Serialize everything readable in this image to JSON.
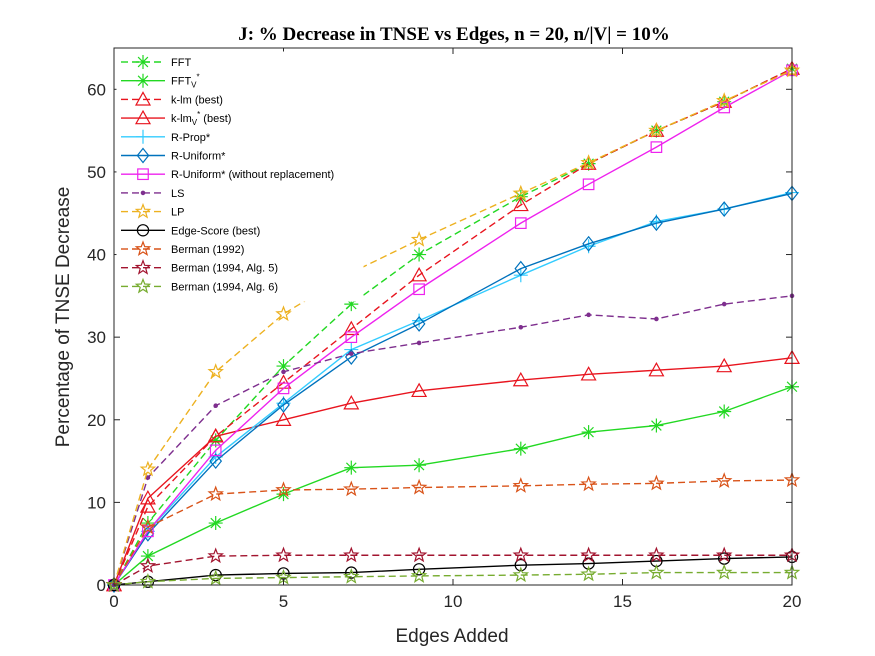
{
  "chart_data": {
    "type": "line",
    "title": "J: % Decrease in TNSE vs Edges, n = 20, n/|V| = 10%",
    "xlabel": "Edges Added",
    "ylabel": "Percentage of TNSE Decrease",
    "xlim": [
      0,
      20
    ],
    "ylim": [
      0,
      65
    ],
    "xticks": [
      0,
      5,
      10,
      15,
      20
    ],
    "yticks": [
      0,
      10,
      20,
      30,
      40,
      50,
      60
    ],
    "grid": false,
    "legend_position": "top-left",
    "x": [
      0,
      1,
      3,
      5,
      7,
      9,
      12,
      14,
      16,
      18,
      20
    ],
    "series": [
      {
        "name": "FFT",
        "legend": {
          "base": "FFT",
          "sub": "",
          "sup": "",
          "rest": ""
        },
        "color": "#22d822",
        "dash": "dashed",
        "marker": "asterisk",
        "values": [
          0,
          7.5,
          17.5,
          26.5,
          34,
          40,
          47,
          51,
          55,
          58.5,
          62.5
        ]
      },
      {
        "name": "FFT_V*",
        "legend": {
          "base": "FFT",
          "sub": "V",
          "sup": "*",
          "rest": ""
        },
        "color": "#22d822",
        "dash": "solid",
        "marker": "asterisk",
        "values": [
          0,
          3.5,
          7.5,
          11,
          14.2,
          14.5,
          16.5,
          18.5,
          19.3,
          21,
          24
        ]
      },
      {
        "name": "k-lm (best)",
        "legend": {
          "base": "k-lm (best)",
          "sub": "",
          "sup": "",
          "rest": ""
        },
        "color": "#e8141e",
        "dash": "dashed",
        "marker": "triangle",
        "values": [
          0,
          9.5,
          18,
          24.5,
          31,
          37.5,
          46,
          51,
          55,
          58.5,
          62.5
        ]
      },
      {
        "name": "k-lm_V* (best)",
        "legend": {
          "base": "k-lm",
          "sub": "V",
          "sup": "*",
          "rest": " (best)"
        },
        "color": "#e8141e",
        "dash": "solid",
        "marker": "triangle",
        "values": [
          0,
          10.5,
          18,
          20,
          22,
          23.5,
          24.8,
          25.5,
          26,
          26.5,
          27.5
        ]
      },
      {
        "name": "R-Prop*",
        "legend": {
          "base": "R-Prop*",
          "sub": "",
          "sup": "",
          "rest": ""
        },
        "color": "#33ccff",
        "dash": "solid",
        "marker": "plus",
        "values": [
          0,
          6.5,
          15.5,
          22,
          28.5,
          32,
          37.5,
          41,
          44,
          45.5,
          47.5
        ]
      },
      {
        "name": "R-Uniform*",
        "legend": {
          "base": "R-Uniform*",
          "sub": "",
          "sup": "",
          "rest": ""
        },
        "color": "#0072bd",
        "dash": "solid",
        "marker": "diamond",
        "values": [
          0,
          6.2,
          15,
          21.8,
          27.6,
          31.6,
          38.3,
          41.3,
          43.8,
          45.5,
          47.4
        ]
      },
      {
        "name": "R-Uniform* (without replacement)",
        "legend": {
          "base": "R-Uniform* (without replacement)",
          "sub": "",
          "sup": "",
          "rest": ""
        },
        "color": "#ee22ee",
        "dash": "solid",
        "marker": "square",
        "values": [
          0,
          6.5,
          16.3,
          23.8,
          30,
          35.8,
          43.8,
          48.5,
          53,
          57.8,
          62.3
        ]
      },
      {
        "name": "LS",
        "legend": {
          "base": "LS",
          "sub": "",
          "sup": "",
          "rest": ""
        },
        "color": "#7e2f8e",
        "dash": "dashed",
        "marker": "dot",
        "values": [
          0,
          13,
          21.7,
          25.8,
          28,
          29.3,
          31.2,
          32.7,
          32.2,
          34,
          35
        ]
      },
      {
        "name": "LP",
        "legend": {
          "base": "LP",
          "sub": "",
          "sup": "",
          "rest": ""
        },
        "color": "#edb120",
        "dash": "dashed",
        "marker": "pentagram",
        "values": [
          0,
          14,
          25.8,
          32.8,
          37.8,
          41.8,
          47.4,
          51.1,
          55,
          58.6,
          62.3
        ]
      },
      {
        "name": "Edge-Score (best)",
        "legend": {
          "base": "Edge-Score (best)",
          "sub": "",
          "sup": "",
          "rest": ""
        },
        "color": "#000000",
        "dash": "solid",
        "marker": "circle",
        "values": [
          0,
          0.4,
          1.2,
          1.4,
          1.5,
          1.9,
          2.4,
          2.6,
          2.9,
          3.2,
          3.4
        ]
      },
      {
        "name": "Berman (1992)",
        "legend": {
          "base": "Berman (1992)",
          "sub": "",
          "sup": "",
          "rest": ""
        },
        "color": "#d95319",
        "dash": "dashed",
        "marker": "pentagram",
        "values": [
          0,
          7,
          11,
          11.5,
          11.6,
          11.8,
          12,
          12.2,
          12.3,
          12.6,
          12.7
        ]
      },
      {
        "name": "Berman (1994, Alg. 5)",
        "legend": {
          "base": "Berman (1994, Alg. 5)",
          "sub": "",
          "sup": "",
          "rest": ""
        },
        "color": "#a2142f",
        "dash": "dashed",
        "marker": "pentagram",
        "values": [
          0,
          2.3,
          3.5,
          3.6,
          3.6,
          3.6,
          3.6,
          3.6,
          3.6,
          3.6,
          3.6
        ]
      },
      {
        "name": "Berman (1994, Alg. 6)",
        "legend": {
          "base": "Berman (1994, Alg. 6)",
          "sub": "",
          "sup": "",
          "rest": ""
        },
        "color": "#77ac30",
        "dash": "dashed",
        "marker": "pentagram",
        "values": [
          0,
          0.4,
          0.8,
          0.9,
          1.0,
          1.1,
          1.2,
          1.3,
          1.5,
          1.5,
          1.5
        ]
      }
    ]
  }
}
